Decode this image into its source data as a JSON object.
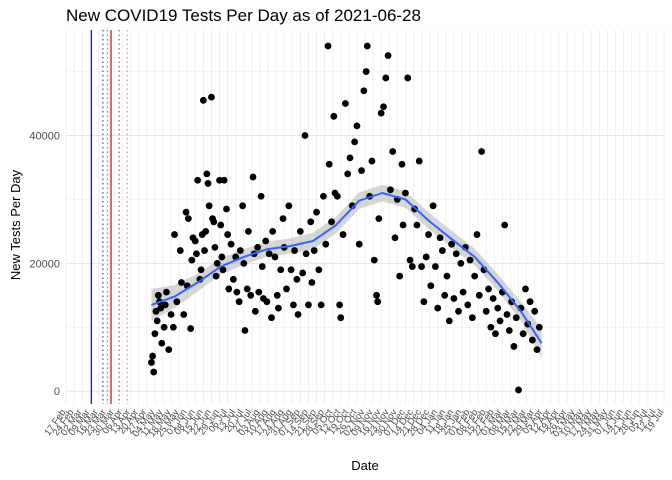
{
  "chart_data": {
    "type": "scatter",
    "title": "New COVID19 Tests Per Day as of 2021-06-28",
    "xlabel": "Date",
    "ylabel": "New Tests Per Day",
    "x_type": "date",
    "xlim": [
      "2020-02-17",
      "2021-07-19"
    ],
    "ylim": [
      -2000,
      56500
    ],
    "y_ticks": [
      0,
      20000,
      40000
    ],
    "grid": true,
    "x_tick_labels": [
      "17 Feb",
      "24 Feb",
      "02 Mar",
      "09 Mar",
      "16 Mar",
      "23 Mar",
      "30 Mar",
      "06 Apr",
      "13 Apr",
      "20 Apr",
      "27 Apr",
      "04 May",
      "11 May",
      "18 May",
      "25 May",
      "01 Jun",
      "08 Jun",
      "15 Jun",
      "22 Jun",
      "29 Jun",
      "06 Jul",
      "13 Jul",
      "20 Jul",
      "27 Jul",
      "03 Aug",
      "10 Aug",
      "17 Aug",
      "24 Aug",
      "31 Aug",
      "07 Sep",
      "14 Sep",
      "21 Sep",
      "28 Sep",
      "05 Oct",
      "12 Oct",
      "19 Oct",
      "26 Oct",
      "02 Nov",
      "09 Nov",
      "16 Nov",
      "23 Nov",
      "30 Nov",
      "07 Dec",
      "14 Dec",
      "21 Dec",
      "28 Dec",
      "04 Jan",
      "11 Jan",
      "18 Jan",
      "25 Jan",
      "01 Feb",
      "08 Feb",
      "15 Feb",
      "22 Feb",
      "01 Mar",
      "08 Mar",
      "15 Mar",
      "22 Mar",
      "29 Mar",
      "05 Apr",
      "12 Apr",
      "19 Apr",
      "26 Apr",
      "03 May",
      "10 May",
      "17 May",
      "24 May",
      "31 May",
      "07 Jun",
      "14 Jun",
      "21 Jun",
      "28 Jun",
      "05 Jul",
      "12 Jul",
      "19 Jul"
    ],
    "vlines": [
      {
        "date": "2020-03-10",
        "color": "#1a1ad6",
        "style": "solid"
      },
      {
        "date": "2020-03-20",
        "color": "#1a1ad6",
        "style": "dotted"
      },
      {
        "date": "2020-03-24",
        "color": "#7777cc",
        "style": "dotted"
      },
      {
        "date": "2020-03-27",
        "color": "#c81e1e",
        "style": "solid"
      },
      {
        "date": "2020-04-03",
        "color": "#c81e1e",
        "style": "dotted"
      },
      {
        "date": "2020-04-10",
        "color": "#e07a7a",
        "style": "dotted"
      }
    ],
    "series": [
      {
        "type": "points",
        "color": "#000000",
        "points": [
          [
            "2020-05-01",
            4500
          ],
          [
            "2020-05-02",
            5500
          ],
          [
            "2020-05-03",
            3000
          ],
          [
            "2020-05-04",
            9000
          ],
          [
            "2020-05-05",
            12500
          ],
          [
            "2020-05-06",
            11000
          ],
          [
            "2020-05-07",
            15000
          ],
          [
            "2020-05-08",
            14000
          ],
          [
            "2020-05-09",
            13000
          ],
          [
            "2020-05-10",
            7500
          ],
          [
            "2020-05-12",
            10000
          ],
          [
            "2020-05-13",
            13500
          ],
          [
            "2020-05-14",
            15500
          ],
          [
            "2020-05-16",
            6500
          ],
          [
            "2020-05-18",
            12000
          ],
          [
            "2020-05-20",
            10000
          ],
          [
            "2020-05-21",
            24500
          ],
          [
            "2020-05-23",
            14000
          ],
          [
            "2020-05-26",
            22000
          ],
          [
            "2020-05-27",
            17000
          ],
          [
            "2020-05-29",
            12000
          ],
          [
            "2020-05-31",
            28000
          ],
          [
            "2020-06-01",
            16500
          ],
          [
            "2020-06-02",
            27000
          ],
          [
            "2020-06-04",
            9800
          ],
          [
            "2020-06-05",
            20500
          ],
          [
            "2020-06-06",
            24000
          ],
          [
            "2020-06-08",
            23500
          ],
          [
            "2020-06-09",
            21500
          ],
          [
            "2020-06-10",
            33000
          ],
          [
            "2020-06-12",
            17500
          ],
          [
            "2020-06-13",
            19000
          ],
          [
            "2020-06-14",
            24500
          ],
          [
            "2020-06-15",
            45500
          ],
          [
            "2020-06-16",
            22000
          ],
          [
            "2020-06-17",
            25000
          ],
          [
            "2020-06-18",
            34000
          ],
          [
            "2020-06-19",
            32500
          ],
          [
            "2020-06-20",
            29000
          ],
          [
            "2020-06-22",
            46000
          ],
          [
            "2020-06-23",
            27000
          ],
          [
            "2020-06-24",
            26500
          ],
          [
            "2020-06-25",
            22500
          ],
          [
            "2020-06-26",
            18000
          ],
          [
            "2020-06-27",
            20000
          ],
          [
            "2020-06-29",
            33000
          ],
          [
            "2020-06-30",
            26000
          ],
          [
            "2020-07-01",
            21000
          ],
          [
            "2020-07-02",
            19000
          ],
          [
            "2020-07-03",
            33000
          ],
          [
            "2020-07-05",
            28500
          ],
          [
            "2020-07-06",
            24500
          ],
          [
            "2020-07-07",
            16000
          ],
          [
            "2020-07-09",
            23000
          ],
          [
            "2020-07-11",
            17500
          ],
          [
            "2020-07-13",
            21000
          ],
          [
            "2020-07-14",
            15500
          ],
          [
            "2020-07-16",
            14000
          ],
          [
            "2020-07-17",
            22000
          ],
          [
            "2020-07-19",
            29000
          ],
          [
            "2020-07-20",
            20000
          ],
          [
            "2020-07-21",
            9500
          ],
          [
            "2020-07-23",
            16000
          ],
          [
            "2020-07-24",
            25000
          ],
          [
            "2020-07-26",
            15000
          ],
          [
            "2020-07-28",
            33500
          ],
          [
            "2020-07-29",
            21500
          ],
          [
            "2020-07-30",
            12500
          ],
          [
            "2020-08-01",
            22500
          ],
          [
            "2020-08-02",
            15500
          ],
          [
            "2020-08-04",
            30500
          ],
          [
            "2020-08-05",
            19500
          ],
          [
            "2020-08-06",
            14500
          ],
          [
            "2020-08-08",
            23500
          ],
          [
            "2020-08-09",
            14000
          ],
          [
            "2020-08-11",
            21500
          ],
          [
            "2020-08-13",
            11500
          ],
          [
            "2020-08-14",
            25000
          ],
          [
            "2020-08-16",
            21000
          ],
          [
            "2020-08-18",
            15000
          ],
          [
            "2020-08-19",
            13000
          ],
          [
            "2020-08-21",
            19000
          ],
          [
            "2020-08-23",
            27000
          ],
          [
            "2020-08-24",
            22500
          ],
          [
            "2020-08-26",
            16000
          ],
          [
            "2020-08-28",
            29000
          ],
          [
            "2020-08-30",
            19000
          ],
          [
            "2020-09-01",
            13500
          ],
          [
            "2020-09-02",
            22000
          ],
          [
            "2020-09-04",
            17500
          ],
          [
            "2020-09-05",
            12000
          ],
          [
            "2020-09-07",
            25000
          ],
          [
            "2020-09-09",
            18500
          ],
          [
            "2020-09-11",
            40000
          ],
          [
            "2020-09-12",
            21500
          ],
          [
            "2020-09-14",
            13500
          ],
          [
            "2020-09-16",
            26500
          ],
          [
            "2020-09-17",
            17000
          ],
          [
            "2020-09-19",
            22000
          ],
          [
            "2020-09-21",
            28000
          ],
          [
            "2020-09-23",
            19000
          ],
          [
            "2020-09-25",
            13500
          ],
          [
            "2020-09-27",
            30500
          ],
          [
            "2020-09-29",
            23000
          ],
          [
            "2020-10-01",
            54000
          ],
          [
            "2020-10-02",
            35500
          ],
          [
            "2020-10-04",
            26500
          ],
          [
            "2020-10-06",
            43000
          ],
          [
            "2020-10-07",
            31000
          ],
          [
            "2020-10-09",
            30500
          ],
          [
            "2020-10-11",
            13500
          ],
          [
            "2020-10-12",
            11500
          ],
          [
            "2020-10-14",
            24500
          ],
          [
            "2020-10-16",
            45000
          ],
          [
            "2020-10-18",
            34000
          ],
          [
            "2020-10-20",
            36500
          ],
          [
            "2020-10-22",
            29000
          ],
          [
            "2020-10-24",
            39000
          ],
          [
            "2020-10-26",
            41500
          ],
          [
            "2020-10-28",
            23000
          ],
          [
            "2020-10-30",
            34500
          ],
          [
            "2020-11-01",
            47000
          ],
          [
            "2020-11-03",
            50000
          ],
          [
            "2020-11-04",
            54000
          ],
          [
            "2020-11-06",
            30500
          ],
          [
            "2020-11-08",
            36000
          ],
          [
            "2020-11-10",
            20500
          ],
          [
            "2020-11-12",
            15000
          ],
          [
            "2020-11-13",
            14000
          ],
          [
            "2020-11-14",
            27000
          ],
          [
            "2020-11-16",
            43500
          ],
          [
            "2020-11-18",
            44500
          ],
          [
            "2020-11-20",
            49000
          ],
          [
            "2020-11-22",
            52500
          ],
          [
            "2020-11-24",
            31500
          ],
          [
            "2020-11-26",
            37500
          ],
          [
            "2020-11-28",
            24000
          ],
          [
            "2020-11-30",
            30000
          ],
          [
            "2020-12-02",
            18000
          ],
          [
            "2020-12-04",
            35500
          ],
          [
            "2020-12-05",
            26000
          ],
          [
            "2020-12-07",
            31000
          ],
          [
            "2020-12-09",
            49000
          ],
          [
            "2020-12-11",
            20500
          ],
          [
            "2020-12-13",
            19500
          ],
          [
            "2020-12-15",
            28500
          ],
          [
            "2020-12-17",
            26000
          ],
          [
            "2020-12-19",
            36000
          ],
          [
            "2020-12-21",
            19500
          ],
          [
            "2020-12-23",
            14000
          ],
          [
            "2020-12-25",
            21000
          ],
          [
            "2020-12-27",
            24500
          ],
          [
            "2020-12-29",
            16500
          ],
          [
            "2020-12-31",
            29000
          ],
          [
            "2021-01-02",
            19500
          ],
          [
            "2021-01-04",
            13000
          ],
          [
            "2021-01-06",
            24000
          ],
          [
            "2021-01-08",
            22000
          ],
          [
            "2021-01-10",
            15000
          ],
          [
            "2021-01-12",
            18000
          ],
          [
            "2021-01-14",
            11000
          ],
          [
            "2021-01-16",
            23000
          ],
          [
            "2021-01-18",
            14500
          ],
          [
            "2021-01-20",
            21500
          ],
          [
            "2021-01-22",
            12500
          ],
          [
            "2021-01-24",
            20000
          ],
          [
            "2021-01-26",
            15500
          ],
          [
            "2021-01-28",
            22500
          ],
          [
            "2021-01-30",
            13500
          ],
          [
            "2021-02-01",
            20500
          ],
          [
            "2021-02-03",
            11500
          ],
          [
            "2021-02-05",
            18000
          ],
          [
            "2021-02-07",
            24500
          ],
          [
            "2021-02-09",
            15000
          ],
          [
            "2021-02-11",
            37500
          ],
          [
            "2021-02-13",
            19000
          ],
          [
            "2021-02-15",
            12500
          ],
          [
            "2021-02-17",
            16000
          ],
          [
            "2021-02-19",
            10000
          ],
          [
            "2021-02-21",
            14500
          ],
          [
            "2021-02-23",
            9000
          ],
          [
            "2021-02-25",
            13000
          ],
          [
            "2021-02-27",
            11000
          ],
          [
            "2021-03-01",
            15500
          ],
          [
            "2021-03-03",
            26000
          ],
          [
            "2021-03-05",
            12000
          ],
          [
            "2021-03-07",
            9500
          ],
          [
            "2021-03-09",
            14000
          ],
          [
            "2021-03-11",
            7000
          ],
          [
            "2021-03-13",
            11500
          ],
          [
            "2021-03-15",
            200
          ],
          [
            "2021-03-17",
            13000
          ],
          [
            "2021-03-19",
            9000
          ],
          [
            "2021-03-21",
            16000
          ],
          [
            "2021-03-23",
            10500
          ],
          [
            "2021-03-25",
            14000
          ],
          [
            "2021-03-27",
            8000
          ],
          [
            "2021-03-29",
            12500
          ],
          [
            "2021-03-31",
            6500
          ],
          [
            "2021-04-02",
            10000
          ]
        ]
      },
      {
        "type": "smooth",
        "color": "#3366ff",
        "points": [
          [
            "2020-05-01",
            13500
          ],
          [
            "2020-05-21",
            14800
          ],
          [
            "2020-06-10",
            17000
          ],
          [
            "2020-06-30",
            19500
          ],
          [
            "2020-07-20",
            21000
          ],
          [
            "2020-08-09",
            22200
          ],
          [
            "2020-08-29",
            22700
          ],
          [
            "2020-09-18",
            23500
          ],
          [
            "2020-10-08",
            26000
          ],
          [
            "2020-10-28",
            29800
          ],
          [
            "2020-11-17",
            31000
          ],
          [
            "2020-12-07",
            30000
          ],
          [
            "2020-12-27",
            26700
          ],
          [
            "2021-01-16",
            23800
          ],
          [
            "2021-02-05",
            21000
          ],
          [
            "2021-02-25",
            17000
          ],
          [
            "2021-03-17",
            12500
          ],
          [
            "2021-04-04",
            7500
          ]
        ],
        "band": [
          [
            "2020-05-01",
            11000,
            16000
          ],
          [
            "2020-05-21",
            13000,
            16600
          ],
          [
            "2020-06-10",
            15600,
            18400
          ],
          [
            "2020-06-30",
            18200,
            20800
          ],
          [
            "2020-07-20",
            19800,
            22200
          ],
          [
            "2020-08-09",
            21000,
            23400
          ],
          [
            "2020-08-29",
            21500,
            23900
          ],
          [
            "2020-09-18",
            22200,
            24800
          ],
          [
            "2020-10-08",
            24700,
            27300
          ],
          [
            "2020-10-28",
            28500,
            31100
          ],
          [
            "2020-11-17",
            29700,
            32300
          ],
          [
            "2020-12-07",
            28700,
            31300
          ],
          [
            "2020-12-27",
            25400,
            28000
          ],
          [
            "2021-01-16",
            22500,
            25100
          ],
          [
            "2021-02-05",
            19700,
            22300
          ],
          [
            "2021-02-25",
            15700,
            18300
          ],
          [
            "2021-03-17",
            11000,
            14000
          ],
          [
            "2021-04-04",
            5200,
            9800
          ]
        ]
      }
    ]
  }
}
